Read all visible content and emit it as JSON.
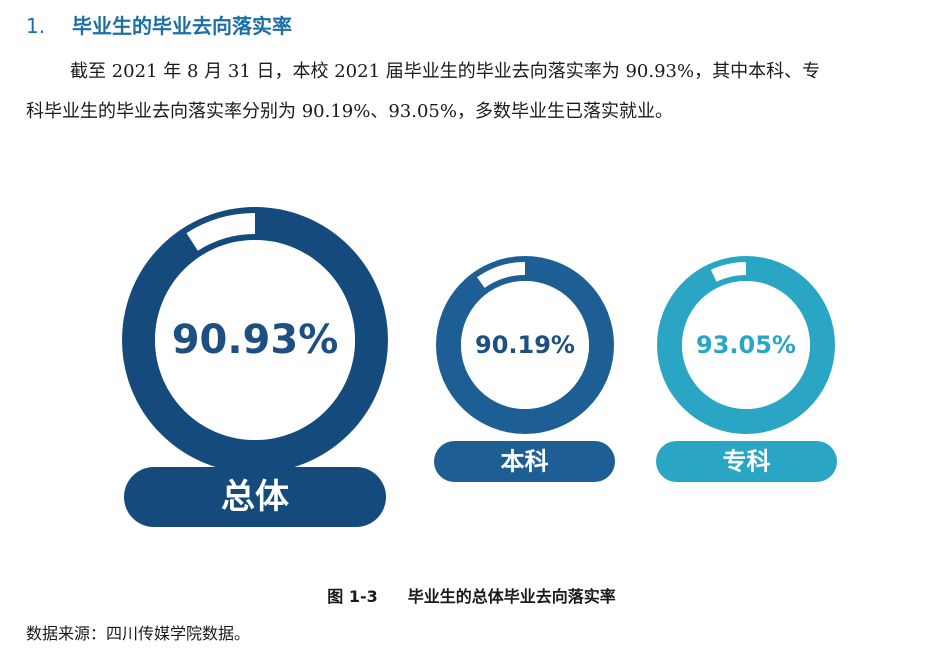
{
  "section": {
    "number": "1.",
    "title": "毕业生的毕业去向落实率"
  },
  "paragraph": {
    "line1": "截至 2021 年 8 月 31 日，本校 2021 届毕业生的毕业去向落实率为 90.93%，其中本科、专",
    "line2": "科毕业生的毕业去向落实率分别为 90.19%、93.05%，多数毕业生已落实就业。"
  },
  "chart_data": {
    "type": "donut",
    "unit": "%",
    "items": [
      {
        "label": "总体",
        "value": 90.93,
        "value_label": "90.93%",
        "color": "#144a7c"
      },
      {
        "label": "本科",
        "value": 90.19,
        "value_label": "90.19%",
        "color": "#1d5f95"
      },
      {
        "label": "专科",
        "value": 93.05,
        "value_label": "93.05%",
        "color": "#2aa6c4"
      }
    ]
  },
  "figure": {
    "number": "图  1-3",
    "caption": "毕业生的总体毕业去向落实率"
  },
  "source": "数据来源：四川传媒学院数据。"
}
